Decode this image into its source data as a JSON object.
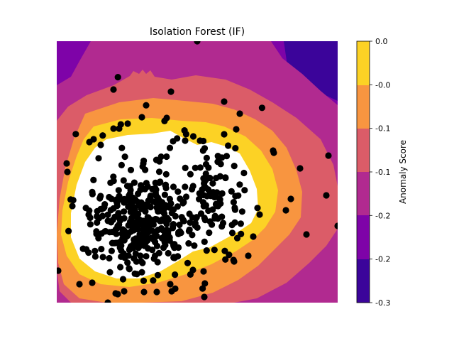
{
  "chart_data": {
    "type": "contour-scatter",
    "title": "Isolation Forest (IF)",
    "xlabel": "",
    "ylabel": "",
    "axes_visible": false,
    "colormap": "plasma",
    "colorbar": {
      "label": "Anomaly Score",
      "tick_labels": [
        "0.0",
        "-0.0",
        "-0.1",
        "-0.1",
        "-0.2",
        "-0.2",
        "-0.3"
      ],
      "levels": [
        {
          "range": [
            -0.3,
            -0.25
          ],
          "color": "#3b049a"
        },
        {
          "range": [
            -0.25,
            -0.2
          ],
          "color": "#7e03a8"
        },
        {
          "range": [
            -0.2,
            -0.15
          ],
          "color": "#b12a90"
        },
        {
          "range": [
            -0.15,
            -0.1
          ],
          "color": "#db5c68"
        },
        {
          "range": [
            -0.1,
            -0.05
          ],
          "color": "#f89540"
        },
        {
          "range": [
            -0.05,
            0.0
          ],
          "color": "#fcd225"
        },
        {
          "range": [
            0.0,
            0.05
          ],
          "color": "#ffffff"
        }
      ]
    },
    "points_color": "#000000"
  }
}
